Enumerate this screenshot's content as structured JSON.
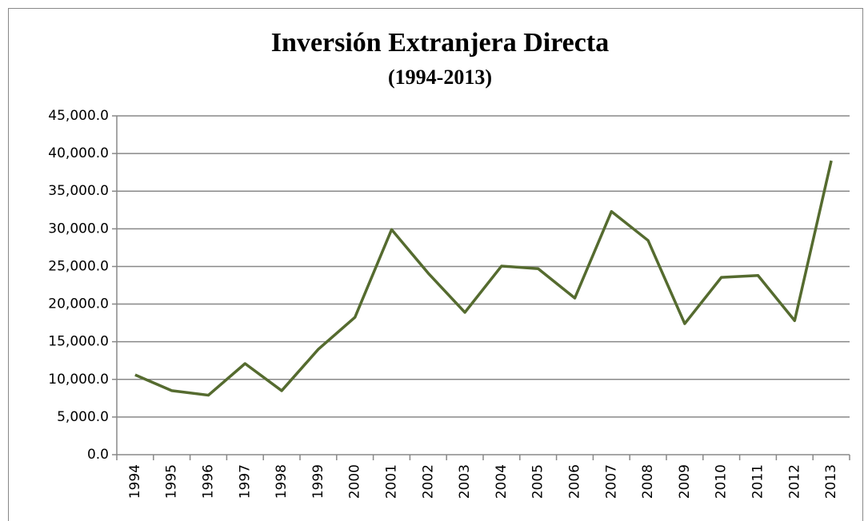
{
  "chart_data": {
    "type": "line",
    "title": "Inversión Extranjera Directa",
    "subtitle": "(1994-2013)",
    "categories": [
      "1994",
      "1995",
      "1996",
      "1997",
      "1998",
      "1999",
      "2000",
      "2001",
      "2002",
      "2003",
      "2004",
      "2005",
      "2006",
      "2007",
      "2008",
      "2009",
      "2010",
      "2011",
      "2012",
      "2013"
    ],
    "series": [
      {
        "name": "Inversión Extranjera Directa",
        "color": "#556b2f",
        "values": [
          10600,
          8500,
          7900,
          12100,
          8500,
          14000,
          18250,
          29900,
          24100,
          18900,
          25050,
          24700,
          20800,
          32300,
          28450,
          17400,
          23550,
          23800,
          17800,
          39050
        ]
      }
    ],
    "ylim": [
      0,
      45000
    ],
    "yticks": [
      {
        "value": 0,
        "label": "0.0"
      },
      {
        "value": 5000,
        "label": "5,000.0"
      },
      {
        "value": 10000,
        "label": "10,000.0"
      },
      {
        "value": 15000,
        "label": "15,000.0"
      },
      {
        "value": 20000,
        "label": "20,000.0"
      },
      {
        "value": 25000,
        "label": "25,000.0"
      },
      {
        "value": 30000,
        "label": "30,000.0"
      },
      {
        "value": 35000,
        "label": "35,000.0"
      },
      {
        "value": 40000,
        "label": "40,000.0"
      },
      {
        "value": 45000,
        "label": "45,000.0"
      }
    ],
    "grid": true
  }
}
